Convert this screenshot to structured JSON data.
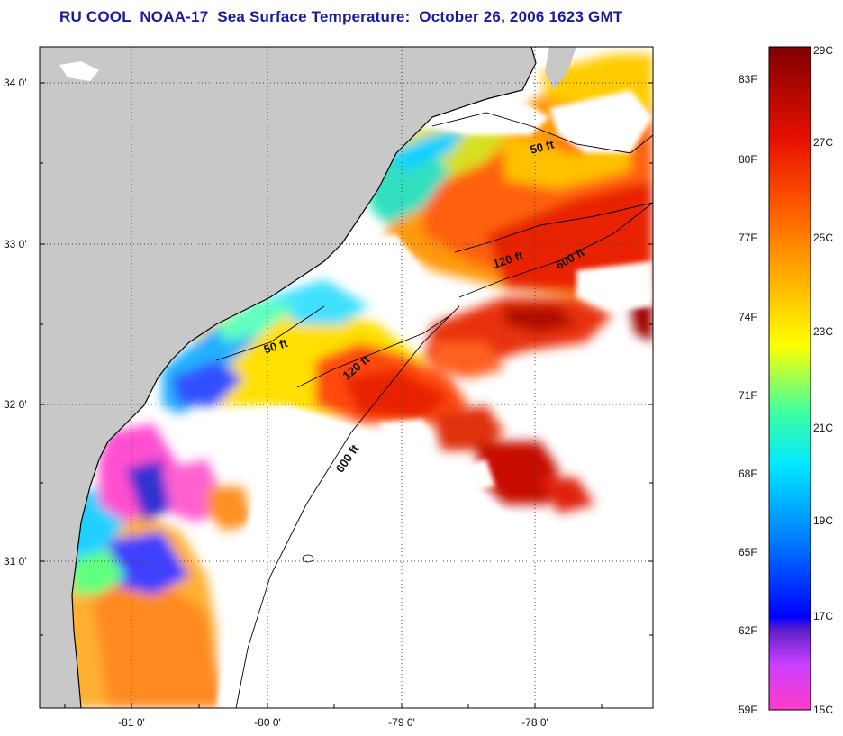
{
  "title": "RU COOL  NOAA-17  Sea Surface Temperature:  October 26, 2006 1623 GMT",
  "map": {
    "lat_ticks": [
      "34 0'",
      "33 0'",
      "32 0'",
      "31 0'"
    ],
    "lon_ticks": [
      "-81 0'",
      "-80 0'",
      "-79 0'",
      "-78 0'"
    ],
    "contour_labels": [
      "50 ft",
      "120 ft",
      "600 ft",
      "50 ft",
      "120 ft",
      "600 ft"
    ],
    "colors": {
      "land": "#c8c8c8",
      "cloud": "#ffffff",
      "grid": "#444444"
    }
  },
  "colorbar": {
    "fahrenheit": [
      "83F",
      "80F",
      "77F",
      "74F",
      "71F",
      "68F",
      "65F",
      "62F",
      "59F"
    ],
    "celsius": [
      "29C",
      "27C",
      "25C",
      "23C",
      "21C",
      "19C",
      "17C",
      "15C"
    ]
  }
}
